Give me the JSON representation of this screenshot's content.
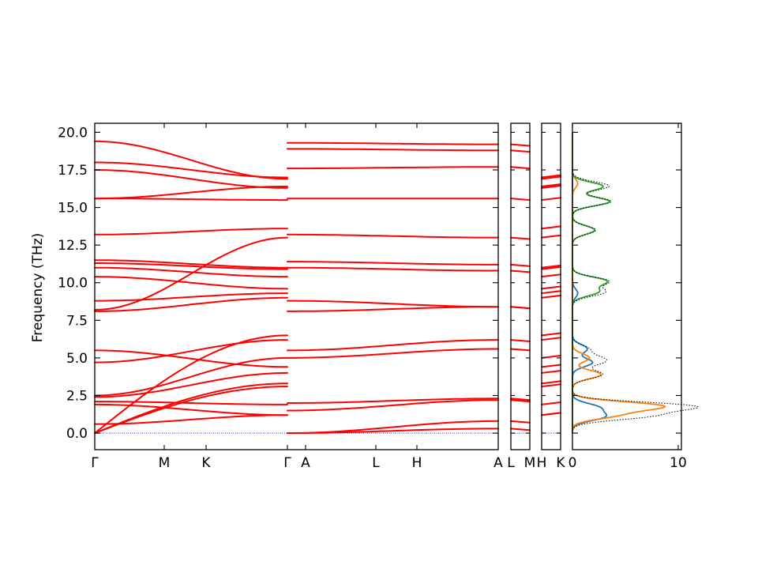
{
  "chart_data": {
    "type": "line",
    "ylabel": "Frequency (THz)",
    "ylim": [
      -1.1,
      20.6
    ],
    "yticks": [
      "0.0",
      "2.5",
      "5.0",
      "7.5",
      "10.0",
      "12.5",
      "15.0",
      "17.5",
      "20.0"
    ],
    "ytick_values": [
      0,
      2.5,
      5,
      7.5,
      10,
      12.5,
      15,
      17.5,
      20
    ],
    "band_color": "#ff0000",
    "zero_line_color": "#1f2fcf",
    "path_labels": [
      "Γ",
      "M",
      "K",
      "Γ",
      "A",
      "L",
      "H",
      "A",
      "L",
      "M",
      "H",
      "K"
    ],
    "segments": [
      {
        "from": "Γ",
        "to": "M",
        "bands": [
          [
            0,
            3.1
          ],
          [
            0,
            3.3
          ],
          [
            0,
            6.5
          ],
          [
            0.6,
            1.2
          ],
          [
            2.4,
            4.0
          ],
          [
            2.1,
            1.9
          ],
          [
            1.9,
            1.2
          ],
          [
            2.5,
            5.0
          ],
          [
            4.7,
            6.2
          ],
          [
            5.5,
            4.4
          ],
          [
            8.1,
            9.0
          ],
          [
            8.2,
            13.0
          ],
          [
            8.8,
            9.3
          ],
          [
            10.4,
            9.6
          ],
          [
            11.0,
            10.4
          ],
          [
            11.3,
            10.9
          ],
          [
            11.5,
            11.0
          ],
          [
            13.2,
            13.6
          ],
          [
            15.6,
            15.5
          ],
          [
            15.6,
            16.4
          ],
          [
            17.5,
            16.3
          ],
          [
            18.0,
            17.0
          ],
          [
            19.4,
            16.9
          ]
        ]
      },
      {
        "from": "Γ",
        "to": "A",
        "bands": [
          [
            0,
            0.3
          ],
          [
            0,
            0.8
          ],
          [
            1.5,
            2.2
          ],
          [
            2.0,
            2.3
          ],
          [
            5.0,
            5.6
          ],
          [
            5.5,
            6.2
          ],
          [
            8.8,
            8.4
          ],
          [
            8.1,
            8.4
          ],
          [
            11.0,
            10.8
          ],
          [
            11.4,
            11.2
          ],
          [
            13.2,
            13.0
          ],
          [
            15.6,
            15.6
          ],
          [
            17.6,
            17.7
          ],
          [
            18.9,
            18.8
          ],
          [
            19.3,
            19.2
          ]
        ]
      }
    ],
    "dos": {
      "xlim": [
        0,
        10.3
      ],
      "xticks": [
        "0",
        "10"
      ],
      "xtick_values": [
        0,
        10
      ],
      "series": [
        {
          "color": "#1f77b4",
          "peaks": [
            [
              1.1,
              2.9
            ],
            [
              1.7,
              2.4
            ],
            [
              4.7,
              1.9
            ],
            [
              5.6,
              1.4
            ],
            [
              9.3,
              0.5
            ]
          ]
        },
        {
          "color": "#ff7f0e",
          "peaks": [
            [
              1.8,
              8.3
            ],
            [
              1.2,
              3.8
            ],
            [
              3.9,
              2.7
            ],
            [
              5.0,
              1.6
            ],
            [
              16.6,
              0.5
            ]
          ]
        },
        {
          "color": "#2ca02c",
          "peaks": [
            [
              9.4,
              2.4
            ],
            [
              10.1,
              3.2
            ],
            [
              13.5,
              2.1
            ],
            [
              15.4,
              3.5
            ],
            [
              16.4,
              2.9
            ]
          ]
        }
      ]
    }
  }
}
